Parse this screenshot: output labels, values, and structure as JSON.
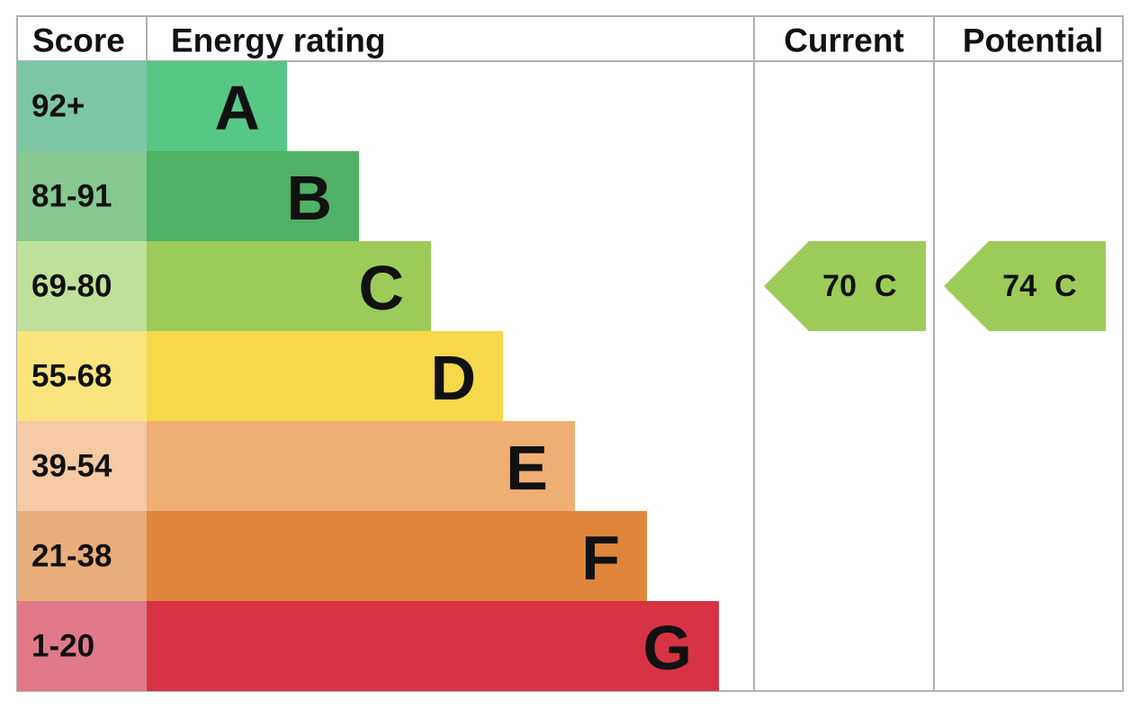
{
  "header": {
    "score": "Score",
    "rating": "Energy rating",
    "current": "Current",
    "potential": "Potential"
  },
  "rows": [
    {
      "score": "92+",
      "rating": "A",
      "color": "#57c785",
      "score_color": "#7cc6a5"
    },
    {
      "score": "81-91",
      "rating": "B",
      "color": "#4fb265",
      "score_color": "#86c88f"
    },
    {
      "score": "69-80",
      "rating": "C",
      "color": "#9ccb5a",
      "score_color": "#bfe09a"
    },
    {
      "score": "55-68",
      "rating": "D",
      "color": "#f6d84a",
      "score_color": "#fbe47e"
    },
    {
      "score": "39-54",
      "rating": "E",
      "color": "#efae73",
      "score_color": "#f5caa4"
    },
    {
      "score": "21-38",
      "rating": "F",
      "color": "#e0863c",
      "score_color": "#e8ae7c"
    },
    {
      "score": "1-20",
      "rating": "G",
      "color": "#d63444",
      "score_color": "#e07a8a"
    }
  ],
  "current": {
    "score": "70",
    "rating": "C"
  },
  "potential": {
    "score": "74",
    "rating": "C"
  }
}
